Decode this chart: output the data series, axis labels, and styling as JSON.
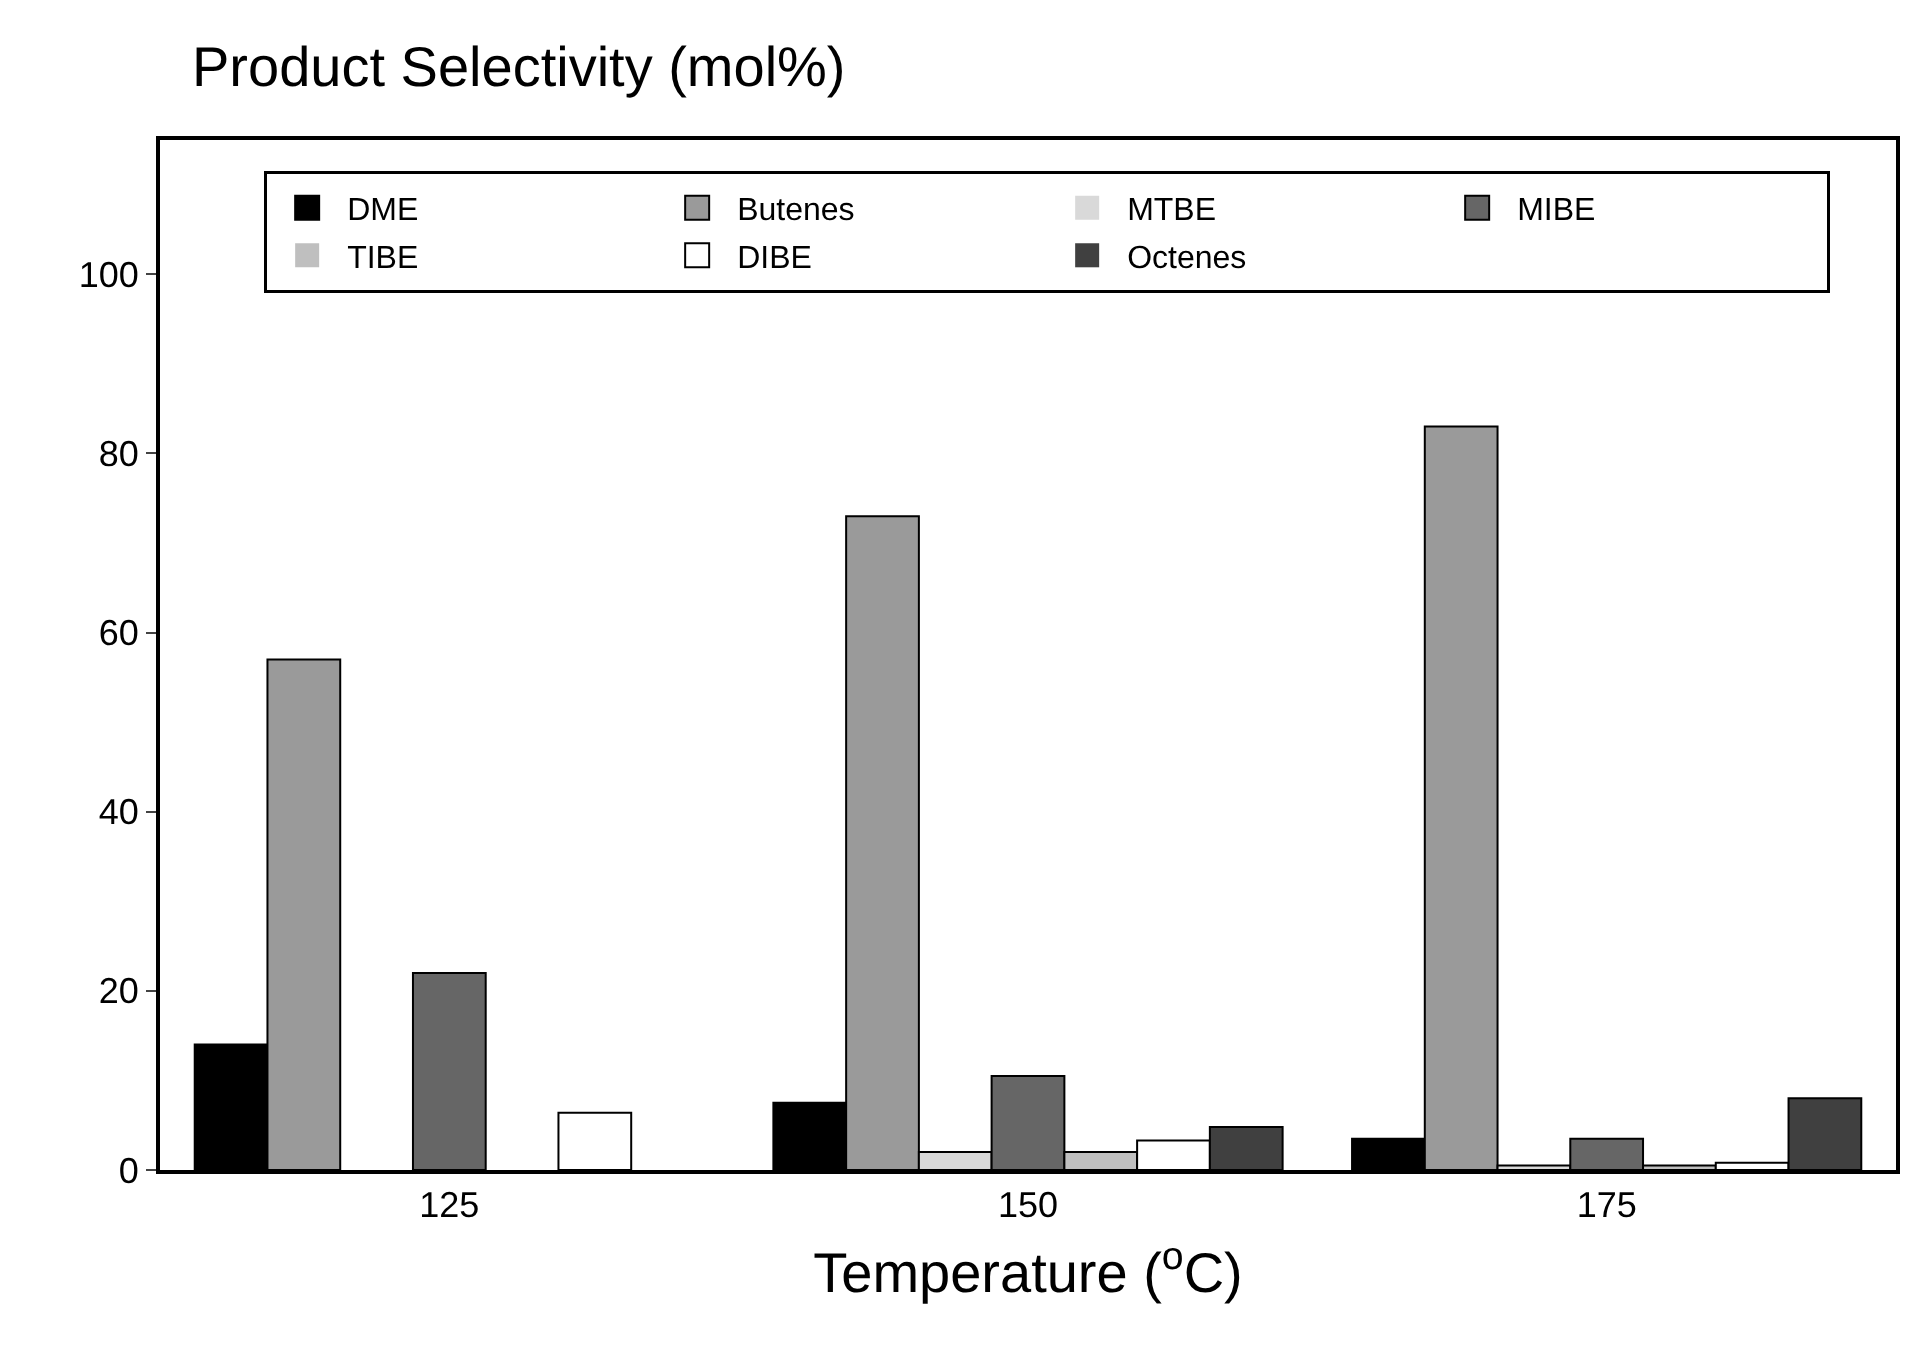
{
  "chart_data": {
    "type": "bar",
    "title": "Product Selectivity (mol%)",
    "xlabel": "Temperature ($^{o}$C)",
    "categories": [
      "125",
      "150",
      "175"
    ],
    "series": [
      {
        "name": "DME",
        "color": "#000000",
        "values": [
          14,
          7.5,
          3.5
        ]
      },
      {
        "name": "Butenes",
        "color": "#9a9a9a",
        "values": [
          57,
          73,
          83
        ]
      },
      {
        "name": "MTBE",
        "color": "#d9d9d9",
        "values": [
          0,
          2,
          0.5
        ]
      },
      {
        "name": "MIBE",
        "color": "#666666",
        "values": [
          22,
          10.5,
          3.5
        ]
      },
      {
        "name": "TIBE",
        "color": "#bfbfbf",
        "values": [
          0,
          2,
          0.5
        ]
      },
      {
        "name": "DIBE",
        "color": "#ffffff",
        "values": [
          6.4,
          3.3,
          0.8
        ]
      },
      {
        "name": "Octenes",
        "color": "#404040",
        "values": [
          0,
          4.8,
          8
        ]
      }
    ],
    "ylim": [
      0,
      115
    ],
    "yticks": [
      0,
      20,
      40,
      60,
      80,
      100
    ],
    "grid": false,
    "legend": "top"
  }
}
